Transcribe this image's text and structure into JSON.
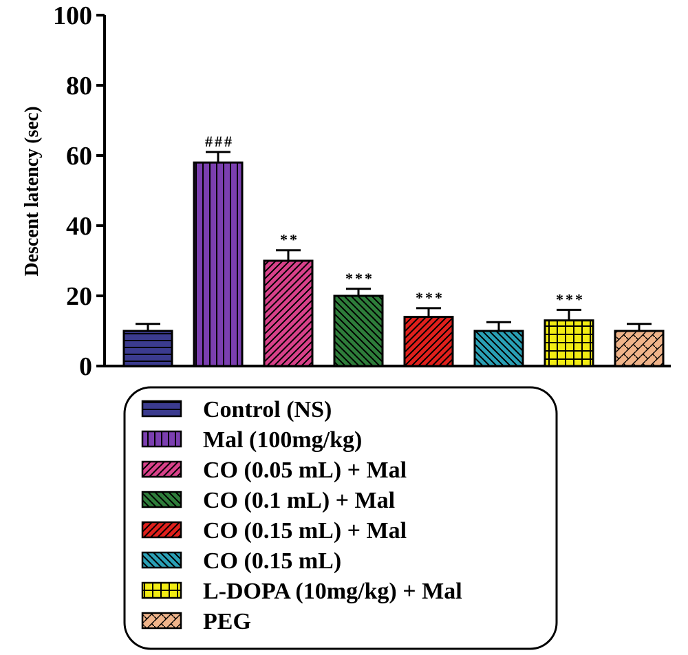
{
  "chart_data": {
    "type": "bar",
    "ylabel": "Descent latency (sec)",
    "ylim": [
      0,
      100
    ],
    "yticks": [
      "0",
      "20",
      "40",
      "60",
      "80",
      "100"
    ],
    "grid": false,
    "legend_placement": "bottom",
    "categories": [
      "Control (NS)",
      "Mal (100mg/kg)",
      "CO (0.05 mL) + Mal",
      "CO (0.1 mL) + Mal",
      "CO (0.15 mL) + Mal",
      "CO (0.15 mL)",
      "L-DOPA (10mg/kg) + Mal",
      "PEG"
    ],
    "values": [
      10,
      58,
      30,
      20,
      14,
      10,
      13,
      10
    ],
    "errors": [
      2,
      3,
      3,
      2,
      2.5,
      2.5,
      3,
      2
    ],
    "annotations": [
      "",
      "###",
      "**",
      "***",
      "***",
      "",
      "***",
      ""
    ],
    "colors": [
      "#3b3b8f",
      "#7b3fb0",
      "#d8418a",
      "#2e7d3a",
      "#e0201c",
      "#2aa0b5",
      "#f2ec13",
      "#f0b48a"
    ],
    "patterns": [
      "hlines",
      "vlines",
      "diag-right",
      "diag-left",
      "diag-right",
      "diag-left",
      "grid",
      "weave"
    ]
  }
}
